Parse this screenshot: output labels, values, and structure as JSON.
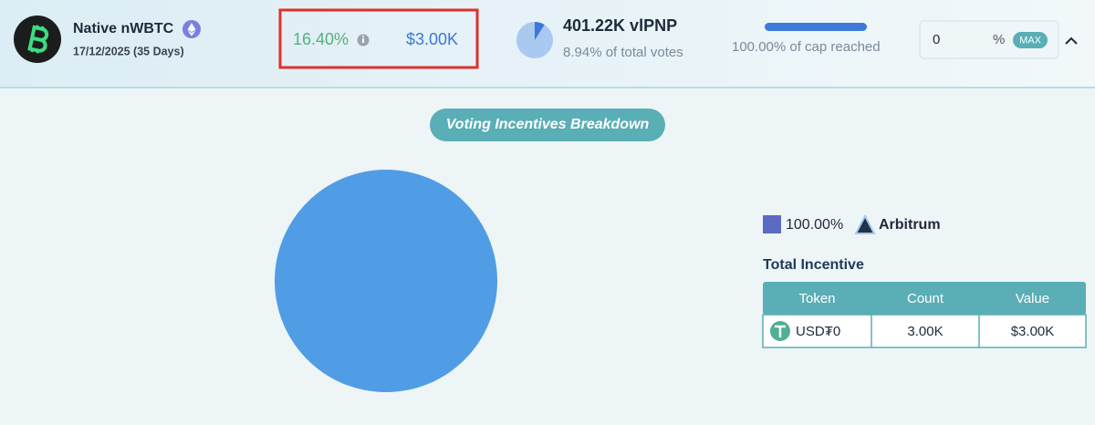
{
  "header": {
    "name": "Native nWBTC",
    "date": "17/12/2025 (35 Days)",
    "apr": "16.40%",
    "reward": "$3.00K",
    "votes": "401.22K vlPNP",
    "vote_share": {
      "value": 8.94,
      "label": "8.94% of total votes"
    },
    "cap": {
      "value": 100,
      "label": "100.00% of cap reached"
    },
    "input": {
      "value": "0",
      "unit": "%",
      "max": "MAX"
    }
  },
  "breakdown": {
    "title": "Voting Incentives Breakdown",
    "chart": {
      "type": "pie",
      "slices": [
        {
          "name": "Arbitrum",
          "value": 100,
          "label": "100.00%",
          "color": "#509de6",
          "legend_color": "#5b6bc2"
        }
      ]
    }
  },
  "table": {
    "title": "Total Incentive",
    "columns": [
      "Token",
      "Count",
      "Value"
    ],
    "rows": [
      [
        "USD₮0",
        "3.00K",
        "$3.00K"
      ]
    ]
  }
}
